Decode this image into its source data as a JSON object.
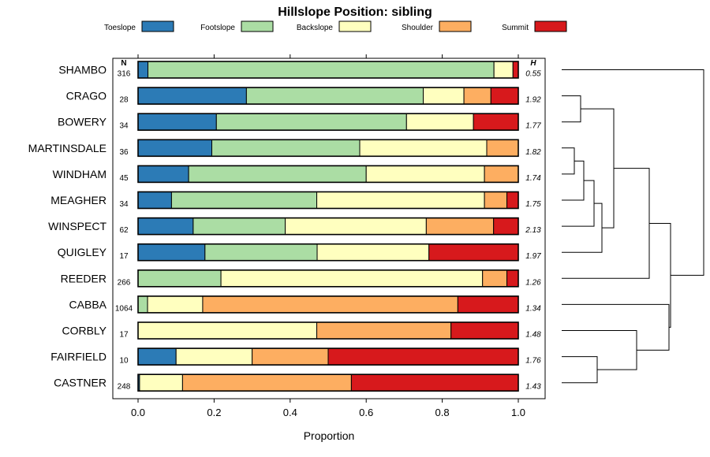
{
  "chart_data": {
    "type": "bar",
    "orientation": "horizontal",
    "stacked": true,
    "title": "Hillslope Position: sibling",
    "xlabel": "Proportion",
    "ylabel": "",
    "xlim": [
      0,
      1
    ],
    "x_ticks": [
      0.0,
      0.2,
      0.4,
      0.6,
      0.8,
      1.0
    ],
    "x_tick_labels": [
      "0.0",
      "0.2",
      "0.4",
      "0.6",
      "0.8",
      "1.0"
    ],
    "n_header": "N",
    "h_header": "H",
    "legend_position": "top",
    "series": [
      {
        "name": "Toeslope",
        "color": "#2c7bb6"
      },
      {
        "name": "Footslope",
        "color": "#abdda4"
      },
      {
        "name": "Backslope",
        "color": "#ffffbf"
      },
      {
        "name": "Shoulder",
        "color": "#fdae61"
      },
      {
        "name": "Summit",
        "color": "#d7191c"
      }
    ],
    "categories": [
      "SHAMBO",
      "CRAGO",
      "BOWERY",
      "MARTINSDALE",
      "WINDHAM",
      "MEAGHER",
      "WINSPECT",
      "QUIGLEY",
      "REEDER",
      "CABBA",
      "CORBLY",
      "FAIRFIELD",
      "CASTNER"
    ],
    "rows": [
      {
        "name": "SHAMBO",
        "n": "316",
        "h": "0.55",
        "values": [
          0.026,
          0.91,
          0.05,
          0.0,
          0.014
        ]
      },
      {
        "name": "CRAGO",
        "n": "28",
        "h": "1.92",
        "values": [
          0.285,
          0.465,
          0.107,
          0.071,
          0.072
        ]
      },
      {
        "name": "BOWERY",
        "n": "34",
        "h": "1.77",
        "values": [
          0.206,
          0.5,
          0.176,
          0.0,
          0.118
        ]
      },
      {
        "name": "MARTINSDALE",
        "n": "36",
        "h": "1.82",
        "values": [
          0.194,
          0.389,
          0.334,
          0.083,
          0.0
        ]
      },
      {
        "name": "WINDHAM",
        "n": "45",
        "h": "1.74",
        "values": [
          0.133,
          0.467,
          0.311,
          0.089,
          0.0
        ]
      },
      {
        "name": "MEAGHER",
        "n": "34",
        "h": "1.75",
        "values": [
          0.088,
          0.382,
          0.441,
          0.059,
          0.03
        ]
      },
      {
        "name": "WINSPECT",
        "n": "62",
        "h": "2.13",
        "values": [
          0.145,
          0.242,
          0.371,
          0.177,
          0.065
        ]
      },
      {
        "name": "QUIGLEY",
        "n": "17",
        "h": "1.97",
        "values": [
          0.176,
          0.295,
          0.294,
          0.0,
          0.235
        ]
      },
      {
        "name": "REEDER",
        "n": "266",
        "h": "1.26",
        "values": [
          0.0,
          0.218,
          0.688,
          0.064,
          0.03
        ]
      },
      {
        "name": "CABBA",
        "n": "1064",
        "h": "1.34",
        "values": [
          0.0,
          0.025,
          0.145,
          0.671,
          0.159
        ]
      },
      {
        "name": "CORBLY",
        "n": "17",
        "h": "1.48",
        "values": [
          0.0,
          0.0,
          0.47,
          0.353,
          0.177
        ]
      },
      {
        "name": "FAIRFIELD",
        "n": "10",
        "h": "1.76",
        "values": [
          0.1,
          0.0,
          0.2,
          0.2,
          0.5
        ]
      },
      {
        "name": "CASTNER",
        "n": "248",
        "h": "1.43",
        "values": [
          0.004,
          0.0,
          0.113,
          0.444,
          0.439
        ]
      }
    ],
    "dendrogram": "hierarchical clustering tree joining the 13 series to the right of the bars"
  }
}
